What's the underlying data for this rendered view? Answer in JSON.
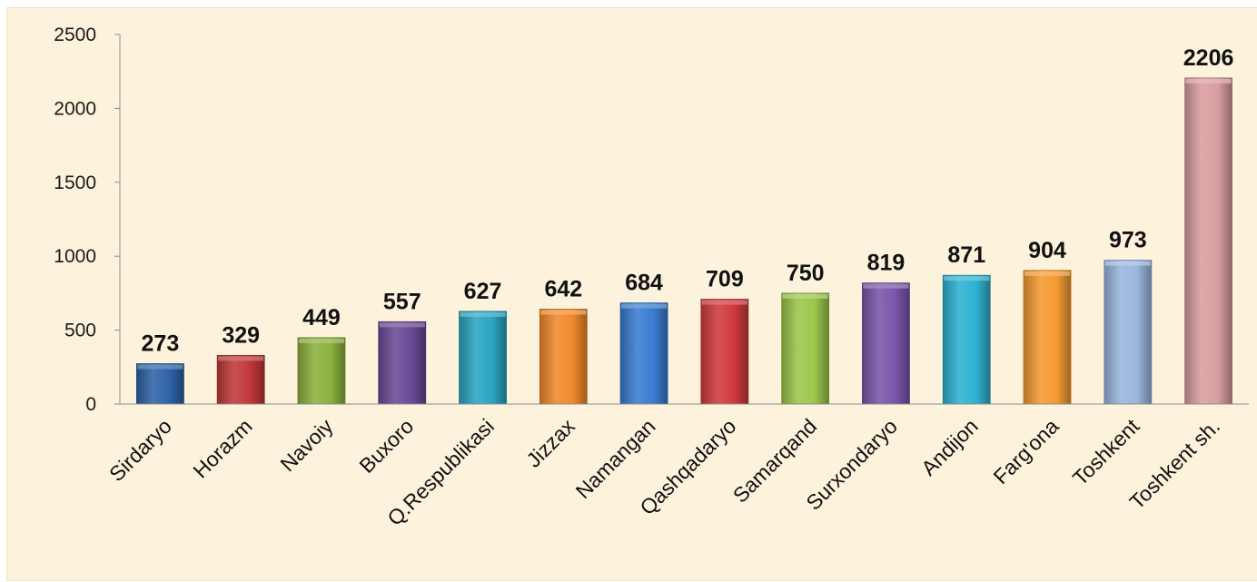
{
  "chart_data": {
    "type": "bar",
    "title": "",
    "xlabel": "",
    "ylabel": "",
    "ylim": [
      0,
      2500
    ],
    "yticks": [
      0,
      500,
      1000,
      1500,
      2000,
      2500
    ],
    "grid": false,
    "legend": "none",
    "categories": [
      "Sirdaryo",
      "Horazm",
      "Navoiy",
      "Buxoro",
      "Q.Respublikasi",
      "Jizzax",
      "Namangan",
      "Qashqadaryo",
      "Samarqand",
      "Surxondaryo",
      "Andijon",
      "Farg'ona",
      "Toshkent",
      "Toshkent sh."
    ],
    "values": [
      273,
      329,
      449,
      557,
      627,
      642,
      684,
      709,
      750,
      819,
      871,
      904,
      973,
      2206
    ],
    "data_labels": [
      "273",
      "329",
      "449",
      "557",
      "627",
      "642",
      "684",
      "709",
      "750",
      "819",
      "871",
      "904",
      "973",
      "2206"
    ],
    "bar_colors": [
      "#2e63a6",
      "#c0393a",
      "#8db13f",
      "#6a4a96",
      "#2ba4c2",
      "#f08a2c",
      "#3b7bd0",
      "#cf3a3d",
      "#9cc64a",
      "#7a56aa",
      "#2fb2d2",
      "#f59a32",
      "#9ab6dd",
      "#d99da0"
    ]
  }
}
